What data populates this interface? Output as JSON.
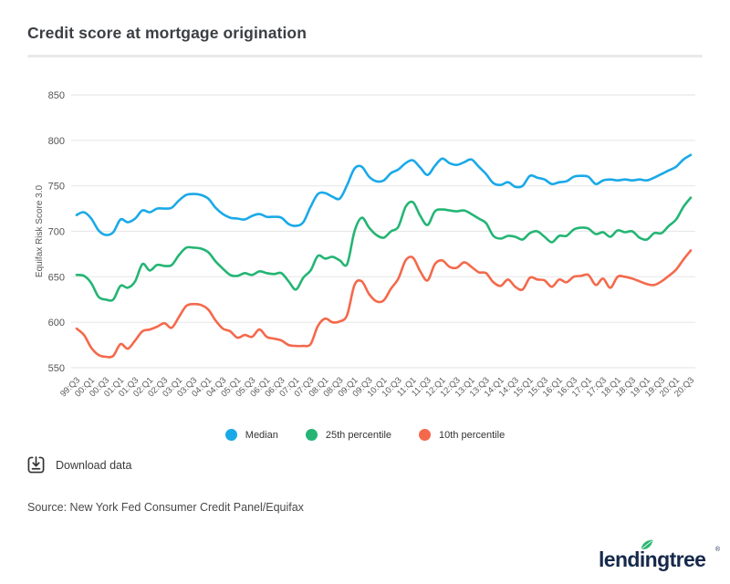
{
  "page": {
    "title": "Credit score at mortgage origination"
  },
  "chart_data": {
    "type": "line",
    "title": "Credit score at mortgage origination",
    "xlabel": "",
    "ylabel": "Equifax Risk Score 3.0",
    "ylim": [
      550,
      850
    ],
    "yticks": [
      850,
      800,
      750,
      700,
      650,
      600,
      550
    ],
    "grid": "horizontal",
    "legend_position": "bottom",
    "x_frequency": "quarterly",
    "x_start": "1999:Q3",
    "x_end": "2020:Q3",
    "x_tick_labels": [
      "99:Q3",
      "00:Q1",
      "00:Q3",
      "01:Q1",
      "01:Q3",
      "02:Q1",
      "02:Q3",
      "03:Q1",
      "03:Q3",
      "04:Q1",
      "04:Q3",
      "05:Q1",
      "05:Q3",
      "06:Q1",
      "06:Q3",
      "07:Q1",
      "07:Q3",
      "08:Q1",
      "08:Q3",
      "09:Q1",
      "09:Q3",
      "10:Q1",
      "10:Q3",
      "11:Q1",
      "11:Q3",
      "12:Q1",
      "12:Q3",
      "13:Q1",
      "13:Q3",
      "14:Q1",
      "14:Q3",
      "15:Q1",
      "15:Q3",
      "16:Q1",
      "16:Q3",
      "17:Q1",
      "17:Q3",
      "18:Q1",
      "18:Q3",
      "19:Q1",
      "19:Q3",
      "20:Q1",
      "20:Q3"
    ],
    "series": [
      {
        "name": "Median",
        "color": "#1aa9e8",
        "values": [
          718,
          721,
          714,
          701,
          696,
          699,
          713,
          710,
          714,
          723,
          721,
          725,
          725,
          726,
          734,
          740,
          741,
          740,
          736,
          726,
          719,
          715,
          714,
          713,
          717,
          719,
          716,
          716,
          715,
          708,
          706,
          710,
          727,
          741,
          742,
          738,
          736,
          751,
          769,
          771,
          760,
          755,
          756,
          764,
          768,
          775,
          778,
          770,
          762,
          772,
          780,
          775,
          773,
          776,
          779,
          771,
          763,
          753,
          751,
          754,
          749,
          750,
          761,
          759,
          757,
          752,
          754,
          755,
          760,
          761,
          760,
          752,
          756,
          757,
          756,
          757,
          756,
          757,
          756,
          759,
          763,
          767,
          771,
          779,
          784
        ]
      },
      {
        "name": "25th percentile",
        "color": "#24b574",
        "values": [
          652,
          651,
          643,
          628,
          625,
          625,
          640,
          638,
          645,
          664,
          657,
          663,
          662,
          663,
          674,
          682,
          682,
          681,
          677,
          667,
          659,
          652,
          651,
          654,
          652,
          656,
          654,
          653,
          654,
          645,
          636,
          649,
          657,
          673,
          670,
          672,
          668,
          664,
          700,
          715,
          704,
          696,
          693,
          700,
          705,
          727,
          732,
          717,
          707,
          722,
          724,
          723,
          722,
          723,
          719,
          714,
          709,
          695,
          692,
          695,
          694,
          691,
          698,
          700,
          694,
          688,
          695,
          695,
          702,
          704,
          703,
          697,
          699,
          694,
          701,
          699,
          700,
          693,
          691,
          698,
          698,
          706,
          713,
          727,
          737
        ]
      },
      {
        "name": "10th percentile",
        "color": "#f4694b",
        "values": [
          593,
          586,
          572,
          564,
          562,
          563,
          576,
          571,
          580,
          590,
          592,
          595,
          599,
          594,
          606,
          618,
          620,
          619,
          614,
          602,
          593,
          590,
          583,
          586,
          584,
          592,
          584,
          582,
          580,
          575,
          574,
          574,
          576,
          596,
          604,
          600,
          601,
          608,
          641,
          645,
          631,
          623,
          624,
          637,
          648,
          668,
          671,
          656,
          646,
          664,
          668,
          661,
          660,
          666,
          661,
          655,
          654,
          644,
          640,
          647,
          639,
          636,
          649,
          647,
          646,
          639,
          647,
          644,
          650,
          651,
          652,
          641,
          648,
          638,
          650,
          650,
          648,
          645,
          642,
          641,
          645,
          651,
          658,
          669,
          679
        ]
      }
    ]
  },
  "actions": {
    "download_label": "Download data"
  },
  "footer": {
    "source": "Source: New York Fed Consumer Credit Panel/Equifax",
    "logo_text": "lendingtree",
    "logo_reg": "®"
  },
  "colors": {
    "gridline": "#e8e8e8",
    "divider": "#e9e9e9",
    "logo_navy": "#16294b",
    "leaf_green": "#2db672"
  }
}
